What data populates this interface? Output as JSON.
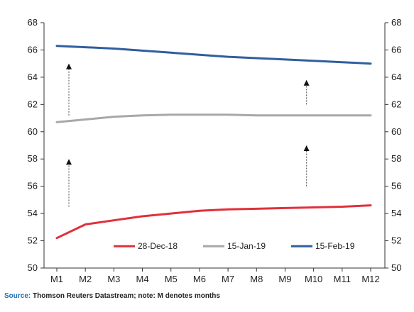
{
  "chart_data": {
    "type": "line",
    "categories": [
      "M1",
      "M2",
      "M3",
      "M4",
      "M5",
      "M6",
      "M7",
      "M8",
      "M9",
      "M10",
      "M11",
      "M12"
    ],
    "ylim": [
      50,
      68
    ],
    "yticks": [
      50,
      52,
      54,
      56,
      58,
      60,
      62,
      64,
      66,
      68
    ],
    "secondary_y_axis": true,
    "grid": false,
    "legend_position": "bottom-right",
    "series": [
      {
        "name": "28-Dec-18",
        "color": "#e0303a",
        "values": [
          52.2,
          53.2,
          53.5,
          53.8,
          54.0,
          54.2,
          54.3,
          54.35,
          54.4,
          54.45,
          54.5,
          54.6
        ]
      },
      {
        "name": "15-Jan-19",
        "color": "#a8a8a8",
        "values": [
          60.7,
          60.9,
          61.1,
          61.2,
          61.25,
          61.25,
          61.25,
          61.2,
          61.2,
          61.2,
          61.2,
          61.2
        ]
      },
      {
        "name": "15-Feb-19",
        "color": "#2f5f9e",
        "values": [
          66.3,
          66.2,
          66.1,
          65.95,
          65.8,
          65.65,
          65.5,
          65.4,
          65.3,
          65.2,
          65.1,
          65.0
        ]
      }
    ],
    "annotations": [
      {
        "type": "arrow",
        "x": "M1",
        "from": 54.5,
        "to": 58.0
      },
      {
        "type": "arrow",
        "x": "M1",
        "from": 61.2,
        "to": 65.0
      },
      {
        "type": "arrow",
        "x": "M10",
        "from": 56.0,
        "to": 59.0
      },
      {
        "type": "arrow",
        "x": "M10",
        "from": 62.0,
        "to": 63.8
      }
    ]
  },
  "source": {
    "label": "Source:",
    "text": " Thomson Reuters Datastream; note: M denotes months"
  }
}
